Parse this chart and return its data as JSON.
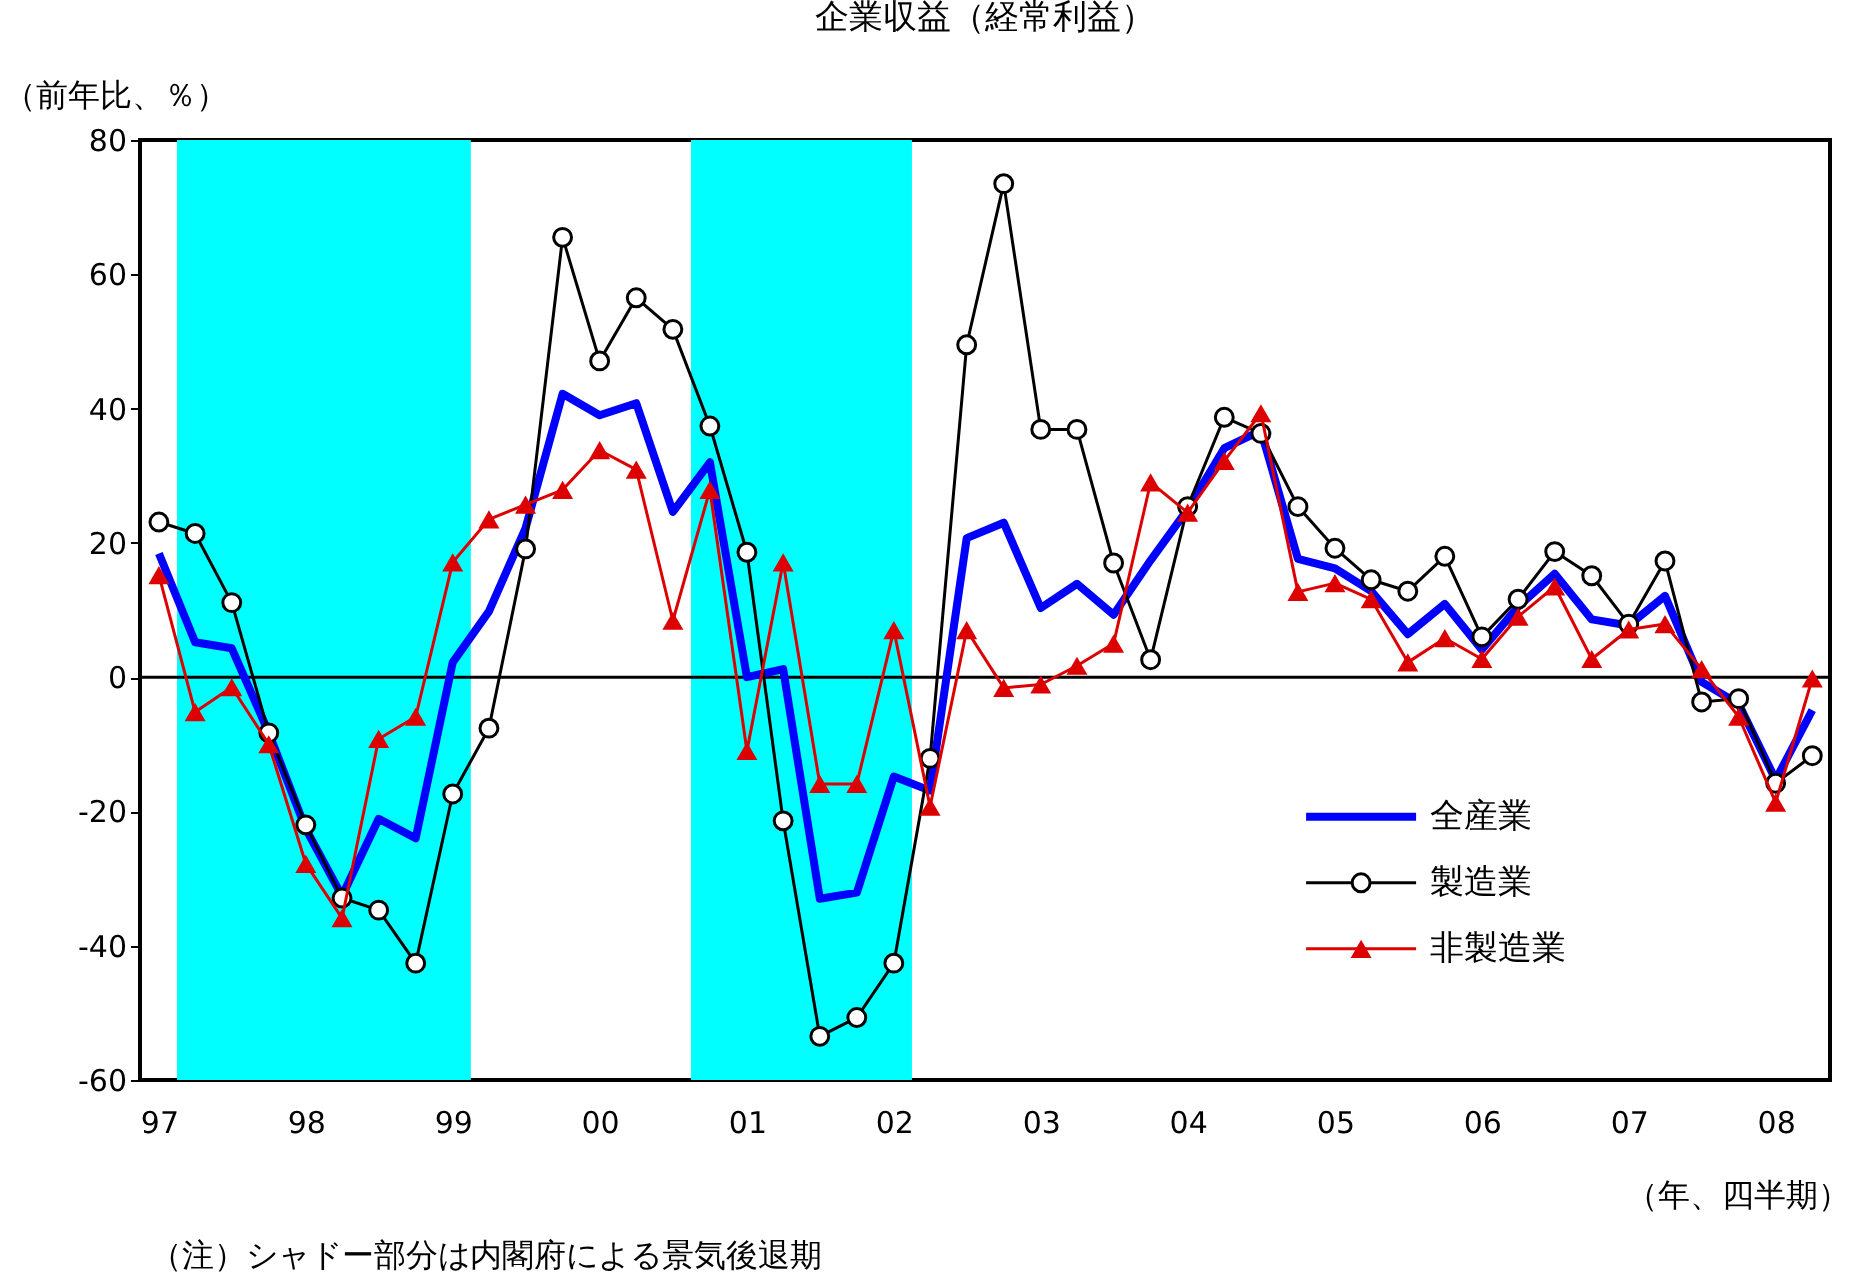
{
  "chart_data": {
    "type": "line",
    "title": "企業収益（経常利益）",
    "ylabel": "（前年比、％）",
    "xlabel": "（年、四半期）",
    "annotations": [
      "（注）シャドー部分は内閣府による景気後退期"
    ],
    "x": [
      "1997-01",
      "1997-04",
      "1997-07",
      "1997-10",
      "1998-01",
      "1998-04",
      "1998-07",
      "1998-10",
      "1999-01",
      "1999-04",
      "1999-07",
      "1999-10",
      "2000-01",
      "2000-04",
      "2000-07",
      "2000-10",
      "2001-01",
      "2001-04",
      "2001-07",
      "2001-10",
      "2002-01",
      "2002-04",
      "2002-07",
      "2002-10",
      "2003-01",
      "2003-04",
      "2003-07",
      "2003-10",
      "2004-01",
      "2004-04",
      "2004-07",
      "2004-10",
      "2005-01",
      "2005-04",
      "2005-07",
      "2005-10",
      "2006-01",
      "2006-04",
      "2006-07",
      "2006-10",
      "2007-01",
      "2007-04",
      "2007-07",
      "2007-10",
      "2008-01",
      "2008-04"
    ],
    "xlim": [
      "1996-11-15",
      "2008-05-15"
    ],
    "xticks": [
      {
        "value": "1997-01",
        "label": "97"
      },
      {
        "value": "1998-01",
        "label": "98"
      },
      {
        "value": "1999-01",
        "label": "99"
      },
      {
        "value": "2000-01",
        "label": "00"
      },
      {
        "value": "2001-01",
        "label": "01"
      },
      {
        "value": "2002-01",
        "label": "02"
      },
      {
        "value": "2003-01",
        "label": "03"
      },
      {
        "value": "2004-01",
        "label": "04"
      },
      {
        "value": "2005-01",
        "label": "05"
      },
      {
        "value": "2006-01",
        "label": "06"
      },
      {
        "value": "2007-01",
        "label": "07"
      },
      {
        "value": "2008-01",
        "label": "08"
      }
    ],
    "ylim": [
      -60,
      80
    ],
    "yticks": [
      -60,
      -40,
      -20,
      0,
      20,
      40,
      60,
      80
    ],
    "legend": "bottom right",
    "ref_lines": [
      {
        "axis": "y",
        "value": 0,
        "color": "#000000"
      }
    ],
    "bands": [
      {
        "axis": "x",
        "from": "1997-02-15",
        "to": "1999-02-15",
        "color": "#00ffff"
      },
      {
        "axis": "x",
        "from": "2000-08-15",
        "to": "2002-02-15",
        "color": "#00ffff"
      }
    ],
    "series": [
      {
        "name": "全産業",
        "color": "#0000ff",
        "marker": "none",
        "values": [
          18.4,
          5.2,
          4.3,
          -8.3,
          -22.6,
          -32.6,
          -21.1,
          -24,
          2.2,
          9.8,
          22.2,
          42.2,
          39,
          40.8,
          24.6,
          32,
          0,
          1.2,
          -33,
          -32.1,
          -14.8,
          -16.9,
          20.7,
          23,
          10.3,
          13.9,
          9.3,
          17.4,
          25,
          34.1,
          36.7,
          17.6,
          16.2,
          12.8,
          6.4,
          10.9,
          4.1,
          10.5,
          15.4,
          8.6,
          7.7,
          12.1,
          -0.7,
          -4,
          -15.3,
          -4.9
        ]
      },
      {
        "name": "製造業",
        "color": "#000000",
        "marker": "circle",
        "values": [
          23.1,
          21.4,
          11.1,
          -8.3,
          -22,
          -32.9,
          -34.7,
          -42.6,
          -17.4,
          -7.6,
          19.1,
          65.5,
          47.1,
          56.5,
          51.8,
          37.4,
          18.6,
          -21.4,
          -53.5,
          -50.7,
          -42.6,
          -12.1,
          49.5,
          73.5,
          36.9,
          36.9,
          17,
          2.6,
          25.4,
          38.7,
          36.3,
          25.4,
          19.2,
          14.5,
          12.8,
          18,
          6,
          11.6,
          18.7,
          15.1,
          7.9,
          17.3,
          -3.7,
          -3.2,
          -15.8,
          -11.7
        ]
      },
      {
        "name": "非製造業",
        "color": "#dd0000",
        "marker": "triangle",
        "values": [
          15.2,
          -5.2,
          -1.5,
          -10,
          -27.8,
          -35.9,
          -9.2,
          -5.9,
          17.1,
          23.5,
          25.7,
          27.9,
          33.8,
          30.9,
          8.4,
          27.9,
          -11,
          17.1,
          -15.9,
          -15.9,
          7,
          -19.3,
          7,
          -1.6,
          -1.1,
          1.7,
          5,
          29,
          24.5,
          32.2,
          39.3,
          12.7,
          14,
          11.6,
          2.2,
          5.8,
          2.7,
          9,
          13.5,
          2.7,
          7.1,
          7.9,
          1.2,
          -5.9,
          -18.7,
          -0.2
        ]
      }
    ]
  }
}
